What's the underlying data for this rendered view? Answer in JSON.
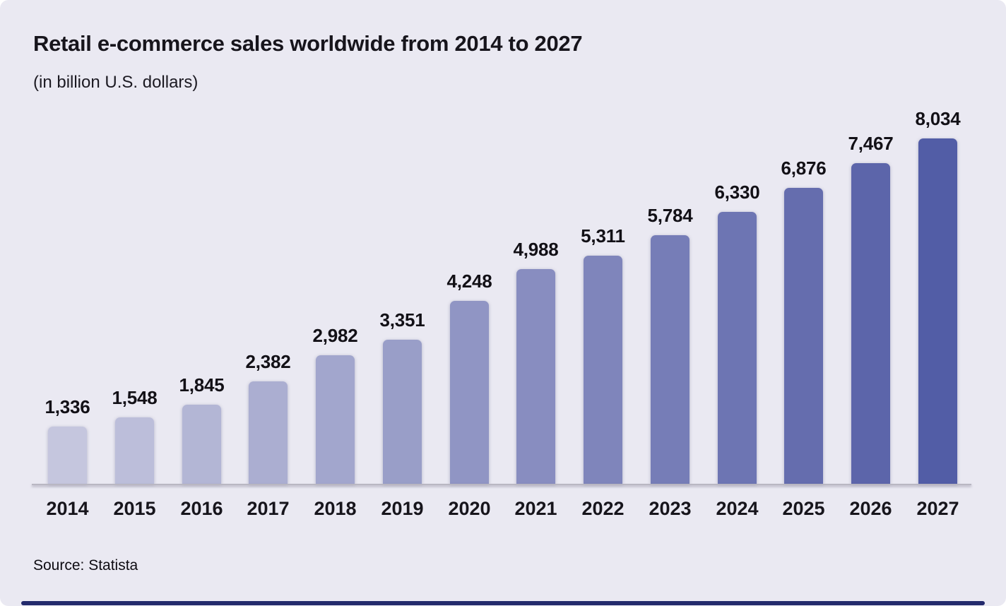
{
  "page": {
    "title": "Retail e-commerce sales worldwide from 2014 to 2027",
    "subtitle": "(in billion U.S. dollars)",
    "source_label": "Source: Statista"
  },
  "colors": {
    "card_background": "#EAE9F2",
    "page_behind": "#FFFFFF",
    "axis_line": "#B9B7C2",
    "text": "#17151C",
    "footer_bar": "#232A6C"
  },
  "chart_data": {
    "type": "bar",
    "title": "Retail e-commerce sales worldwide from 2014 to 2027",
    "subtitle": "(in billion U.S. dollars)",
    "unit": "billion U.S. dollars",
    "categories": [
      "2014",
      "2015",
      "2016",
      "2017",
      "2018",
      "2019",
      "2020",
      "2021",
      "2022",
      "2023",
      "2024",
      "2025",
      "2026",
      "2027"
    ],
    "values": [
      1336,
      1548,
      1845,
      2382,
      2982,
      3351,
      4248,
      4988,
      5311,
      5784,
      6330,
      6876,
      7467,
      8034
    ],
    "value_labels": [
      "1,336",
      "1,548",
      "1,845",
      "2,382",
      "2,982",
      "3,351",
      "4,248",
      "4,988",
      "5,311",
      "5,784",
      "6,330",
      "6,876",
      "7,467",
      "8,034"
    ],
    "bar_colors": [
      "#C5C6DE",
      "#BCBEDA",
      "#B3B6D5",
      "#ABAED1",
      "#A2A6CD",
      "#999EC8",
      "#9095C4",
      "#888DC0",
      "#7F85BB",
      "#767DB7",
      "#6D75B3",
      "#656DAE",
      "#5C65AA",
      "#525DA6"
    ],
    "ylim": [
      0,
      8500
    ],
    "grid": false,
    "legend": false,
    "data_labels": true,
    "source": "Statista"
  }
}
